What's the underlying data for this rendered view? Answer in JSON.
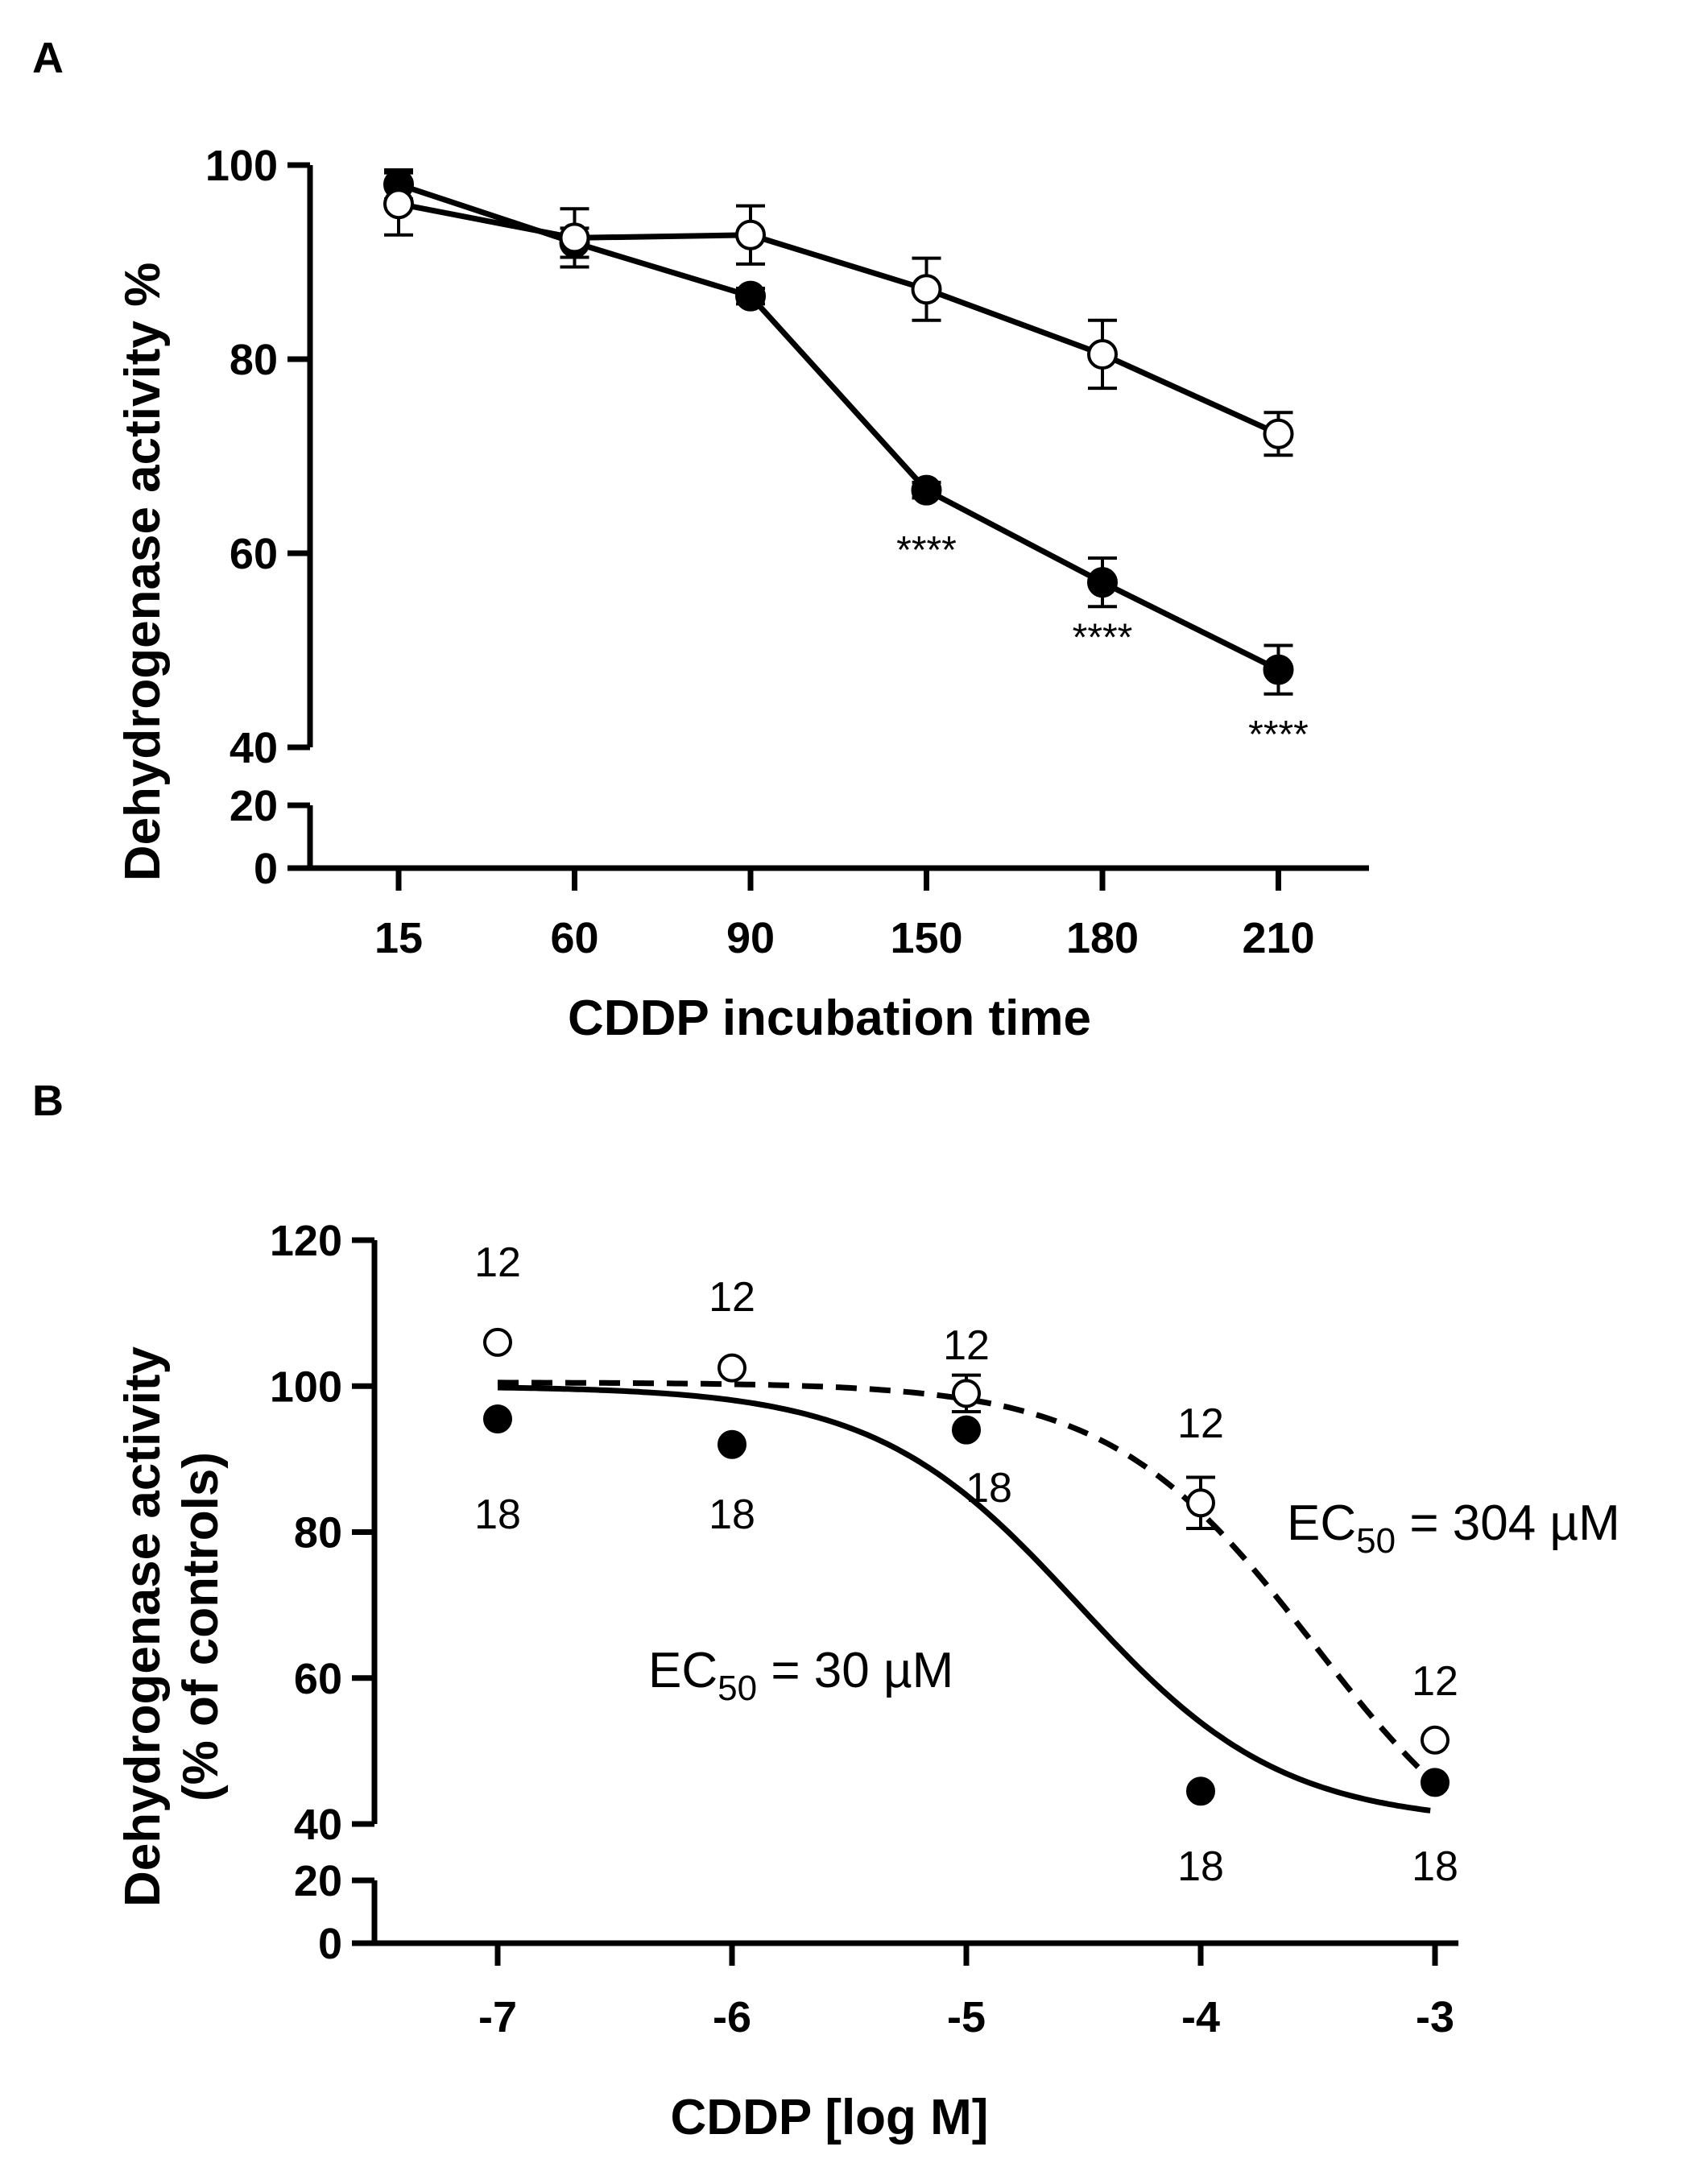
{
  "chart_data": [
    {
      "panel": "A",
      "type": "line",
      "xlabel": "CDDP incubation time",
      "ylabel": "Dehydrogenase activity %",
      "x_categories": [
        "15",
        "60",
        "90",
        "150",
        "180",
        "210"
      ],
      "y_ticks_upper": [
        40,
        60,
        80,
        100
      ],
      "y_ticks_lower": [
        0,
        20
      ],
      "y_break": [
        20,
        40
      ],
      "ylim": [
        0,
        100
      ],
      "grid": false,
      "series": [
        {
          "marker": "filled-circle",
          "values": [
            98,
            92,
            86.5,
            66.5,
            57,
            48
          ],
          "errors": [
            1.5,
            1.5,
            0.8,
            0.8,
            2.5,
            2.5
          ]
        },
        {
          "marker": "open-circle",
          "values": [
            96,
            92.5,
            92.8,
            87.2,
            80.5,
            72.3
          ],
          "errors": [
            3.2,
            3,
            3,
            3.2,
            3.5,
            2.2
          ]
        }
      ],
      "annotations": [
        {
          "x": "150",
          "y": 60.5,
          "text": "****"
        },
        {
          "x": "180",
          "y": 51.5,
          "text": "****"
        },
        {
          "x": "210",
          "y": 41.5,
          "text": "****"
        }
      ]
    },
    {
      "panel": "B",
      "type": "scatter",
      "xlabel": "CDDP [log M]",
      "ylabel_line1": "Dehydrogenase activity",
      "ylabel_line2": "(% of controls)",
      "x_ticks": [
        "-7",
        "-6",
        "-5",
        "-4",
        "-3"
      ],
      "xlim": [
        -7.5,
        -2.9
      ],
      "y_ticks_upper": [
        40,
        60,
        80,
        100,
        120
      ],
      "y_ticks_lower": [
        0,
        20
      ],
      "y_break": [
        20,
        40
      ],
      "ylim": [
        0,
        120
      ],
      "grid": false,
      "series": [
        {
          "marker": "filled-circle",
          "line": "solid",
          "x": [
            -7,
            -6,
            -5,
            -4,
            -3
          ],
          "values": [
            95.5,
            92,
            94,
            44.5,
            45.7
          ],
          "n_labels": [
            "18",
            "18",
            "18",
            "18",
            "18"
          ],
          "fit": {
            "top": 100,
            "bottom": 40,
            "log_ec50": -4.52,
            "hill": 1
          },
          "ec50_prefix": "EC",
          "ec50_sub": "50",
          "ec50_value": " = 30 µM"
        },
        {
          "marker": "open-circle",
          "line": "dashed",
          "x": [
            -7,
            -6,
            -5,
            -4,
            -3
          ],
          "values": [
            106,
            102.5,
            99,
            84,
            51.5
          ],
          "errors": [
            0,
            0,
            2.5,
            3.5,
            0
          ],
          "n_labels": [
            "12",
            "12",
            "12",
            "12",
            "12"
          ],
          "fit": {
            "top": 100.5,
            "bottom": 29,
            "log_ec50": -3.52,
            "hill": 1
          },
          "ec50_prefix": "EC",
          "ec50_sub": "50",
          "ec50_value": " = 304 µM"
        }
      ]
    }
  ]
}
